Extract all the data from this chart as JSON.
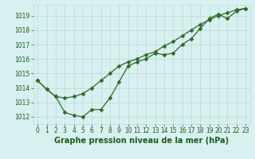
{
  "title": "Graphe pression niveau de la mer (hPa)",
  "x_values": [
    0,
    1,
    2,
    3,
    4,
    5,
    6,
    7,
    8,
    9,
    10,
    11,
    12,
    13,
    14,
    15,
    16,
    17,
    18,
    19,
    20,
    21,
    22,
    23
  ],
  "line1_smooth": [
    1014.5,
    1013.9,
    1013.4,
    1013.3,
    1013.4,
    1013.6,
    1014.0,
    1014.5,
    1015.0,
    1015.5,
    1015.8,
    1016.0,
    1016.3,
    1016.5,
    1016.9,
    1017.2,
    1017.6,
    1018.0,
    1018.4,
    1018.7,
    1019.0,
    1019.2,
    1019.4,
    1019.5
  ],
  "line2_dip": [
    1014.5,
    1013.9,
    1013.4,
    1012.3,
    1012.1,
    1012.0,
    1012.5,
    1012.5,
    1013.3,
    1014.4,
    1015.5,
    1015.8,
    1016.0,
    1016.4,
    1016.3,
    1016.4,
    1017.0,
    1017.4,
    1018.1,
    1018.8,
    1019.1,
    1018.8,
    1019.3,
    1019.5
  ],
  "ylim": [
    1011.5,
    1019.75
  ],
  "yticks": [
    1012,
    1013,
    1014,
    1015,
    1016,
    1017,
    1018,
    1019
  ],
  "xlim": [
    -0.5,
    23.5
  ],
  "line_color": "#2d6a2d",
  "bg_color": "#d8f0f0",
  "grid_color": "#b8d8d8",
  "label_color": "#1a5c1a",
  "title_fontsize": 7.0,
  "tick_fontsize": 5.5,
  "marker_size": 2.5,
  "line_width": 0.9
}
